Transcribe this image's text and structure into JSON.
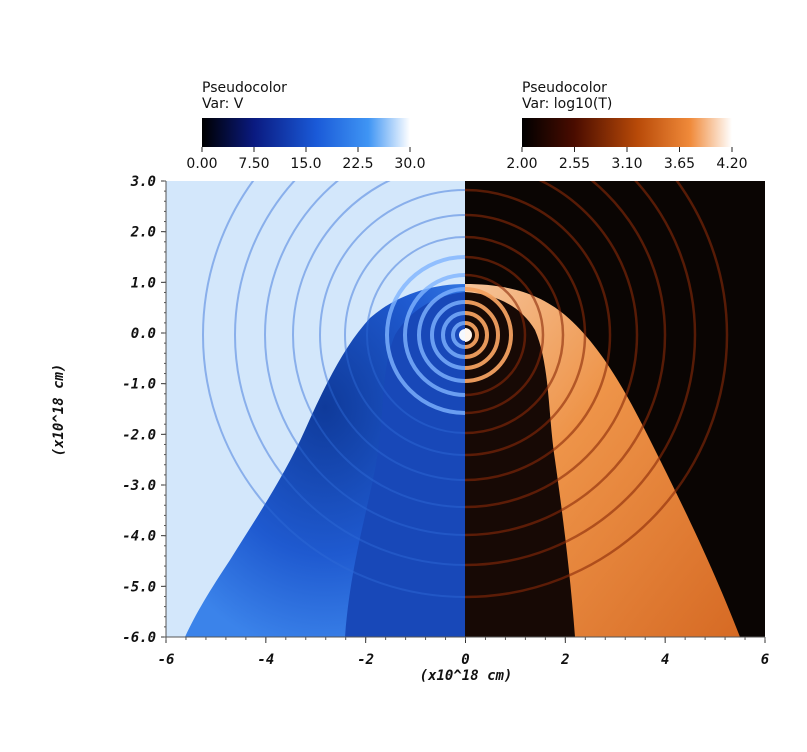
{
  "colorbars": [
    {
      "title_line1": "Pseudocolor",
      "title_line2": "Var: V",
      "ticks": [
        "0.00",
        "7.50",
        "15.0",
        "22.5",
        "30.0"
      ],
      "colors": [
        "#000000",
        "#0a1a80",
        "#1a5ad8",
        "#3f95f4",
        "#ffffff"
      ]
    },
    {
      "title_line1": "Pseudocolor",
      "title_line2": "Var: log10(T)",
      "ticks": [
        "2.00",
        "2.55",
        "3.10",
        "3.65",
        "4.20"
      ],
      "colors": [
        "#000000",
        "#4a0c00",
        "#b84a08",
        "#f08a3a",
        "#ffffff"
      ]
    }
  ],
  "chart_data": {
    "type": "heatmap",
    "xlabel": "(x10^18 cm)",
    "ylabel": "(x10^18 cm)",
    "xlim": [
      -6,
      6
    ],
    "ylim": [
      -6,
      3
    ],
    "x_ticks": [
      "-6",
      "-4",
      "-2",
      "0",
      "2",
      "4",
      "6"
    ],
    "y_ticks": [
      "3.0",
      "2.0",
      "1.0",
      "0.0",
      "-1.0",
      "-2.0",
      "-3.0",
      "-4.0",
      "-5.0",
      "-6.0"
    ],
    "panels": [
      {
        "side": "left",
        "variable": "V",
        "background_color": "#d3e7fb",
        "interior_color": "#1848b8",
        "shell_color": "#2c6ae0"
      },
      {
        "side": "right",
        "variable": "log10(T)",
        "background_color": "#0a0503",
        "interior_color": "#170905",
        "shell_color": "#e27a35"
      }
    ]
  }
}
